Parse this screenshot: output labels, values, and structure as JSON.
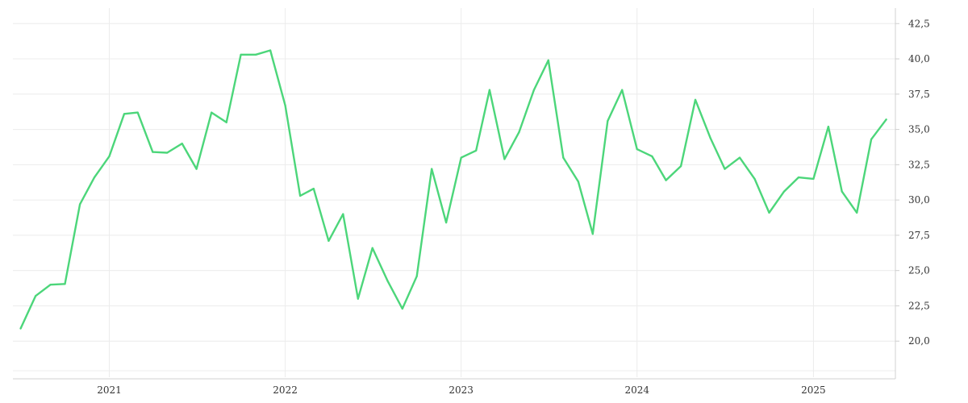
{
  "chart_data": {
    "type": "line",
    "title": "",
    "xlabel": "",
    "ylabel": "",
    "x_tick_labels": [
      "2021",
      "2022",
      "2023",
      "2024",
      "2025"
    ],
    "y_tick_labels": [
      "20,0",
      "22,5",
      "25,0",
      "27,5",
      "30,0",
      "32,5",
      "35,0",
      "37,5",
      "40,0",
      "42,5"
    ],
    "y_ticks": [
      20,
      22.5,
      25,
      27.5,
      30,
      32.5,
      35,
      37.5,
      40,
      42.5
    ],
    "xlim": [
      "2020-06-15",
      "2025-06-20"
    ],
    "ylim": [
      17.9,
      43.6
    ],
    "y_axis_position": "right",
    "grid": true,
    "legend": "none",
    "series": [
      {
        "color": "#4cd67a",
        "points": [
          [
            "2020-07-01",
            20.9
          ],
          [
            "2020-08-01",
            23.2
          ],
          [
            "2020-09-01",
            24.0
          ],
          [
            "2020-10-01",
            24.05
          ],
          [
            "2020-11-01",
            29.7
          ],
          [
            "2020-12-01",
            31.6
          ],
          [
            "2021-01-01",
            33.1
          ],
          [
            "2021-02-01",
            36.1
          ],
          [
            "2021-03-01",
            36.2
          ],
          [
            "2021-04-01",
            33.4
          ],
          [
            "2021-05-01",
            33.35
          ],
          [
            "2021-06-01",
            34.0
          ],
          [
            "2021-07-01",
            32.2
          ],
          [
            "2021-08-01",
            36.2
          ],
          [
            "2021-09-01",
            35.5
          ],
          [
            "2021-10-01",
            40.3
          ],
          [
            "2021-11-01",
            40.3
          ],
          [
            "2021-12-01",
            40.6
          ],
          [
            "2022-01-01",
            36.7
          ],
          [
            "2022-02-01",
            30.3
          ],
          [
            "2022-03-01",
            30.8
          ],
          [
            "2022-04-01",
            27.1
          ],
          [
            "2022-05-01",
            29.0
          ],
          [
            "2022-06-01",
            23.0
          ],
          [
            "2022-07-01",
            26.6
          ],
          [
            "2022-08-01",
            24.3
          ],
          [
            "2022-09-01",
            22.3
          ],
          [
            "2022-10-01",
            24.6
          ],
          [
            "2022-11-01",
            32.2
          ],
          [
            "2022-12-01",
            28.4
          ],
          [
            "2023-01-01",
            33.0
          ],
          [
            "2023-02-01",
            33.5
          ],
          [
            "2023-03-01",
            37.8
          ],
          [
            "2023-04-01",
            32.9
          ],
          [
            "2023-05-01",
            34.8
          ],
          [
            "2023-06-01",
            37.8
          ],
          [
            "2023-07-01",
            39.9
          ],
          [
            "2023-08-01",
            33.0
          ],
          [
            "2023-09-01",
            31.3
          ],
          [
            "2023-10-01",
            27.6
          ],
          [
            "2023-11-01",
            35.6
          ],
          [
            "2023-12-01",
            37.8
          ],
          [
            "2024-01-01",
            33.6
          ],
          [
            "2024-02-01",
            33.1
          ],
          [
            "2024-03-01",
            31.4
          ],
          [
            "2024-04-01",
            32.4
          ],
          [
            "2024-05-01",
            37.1
          ],
          [
            "2024-06-01",
            34.4
          ],
          [
            "2024-07-01",
            32.2
          ],
          [
            "2024-08-01",
            33.0
          ],
          [
            "2024-09-01",
            31.5
          ],
          [
            "2024-10-01",
            29.1
          ],
          [
            "2024-11-01",
            30.6
          ],
          [
            "2024-12-01",
            31.6
          ],
          [
            "2025-01-01",
            31.5
          ],
          [
            "2025-02-01",
            35.2
          ],
          [
            "2025-03-01",
            30.6
          ],
          [
            "2025-04-01",
            29.1
          ],
          [
            "2025-05-01",
            34.3
          ],
          [
            "2025-06-01",
            35.7
          ]
        ]
      }
    ]
  }
}
